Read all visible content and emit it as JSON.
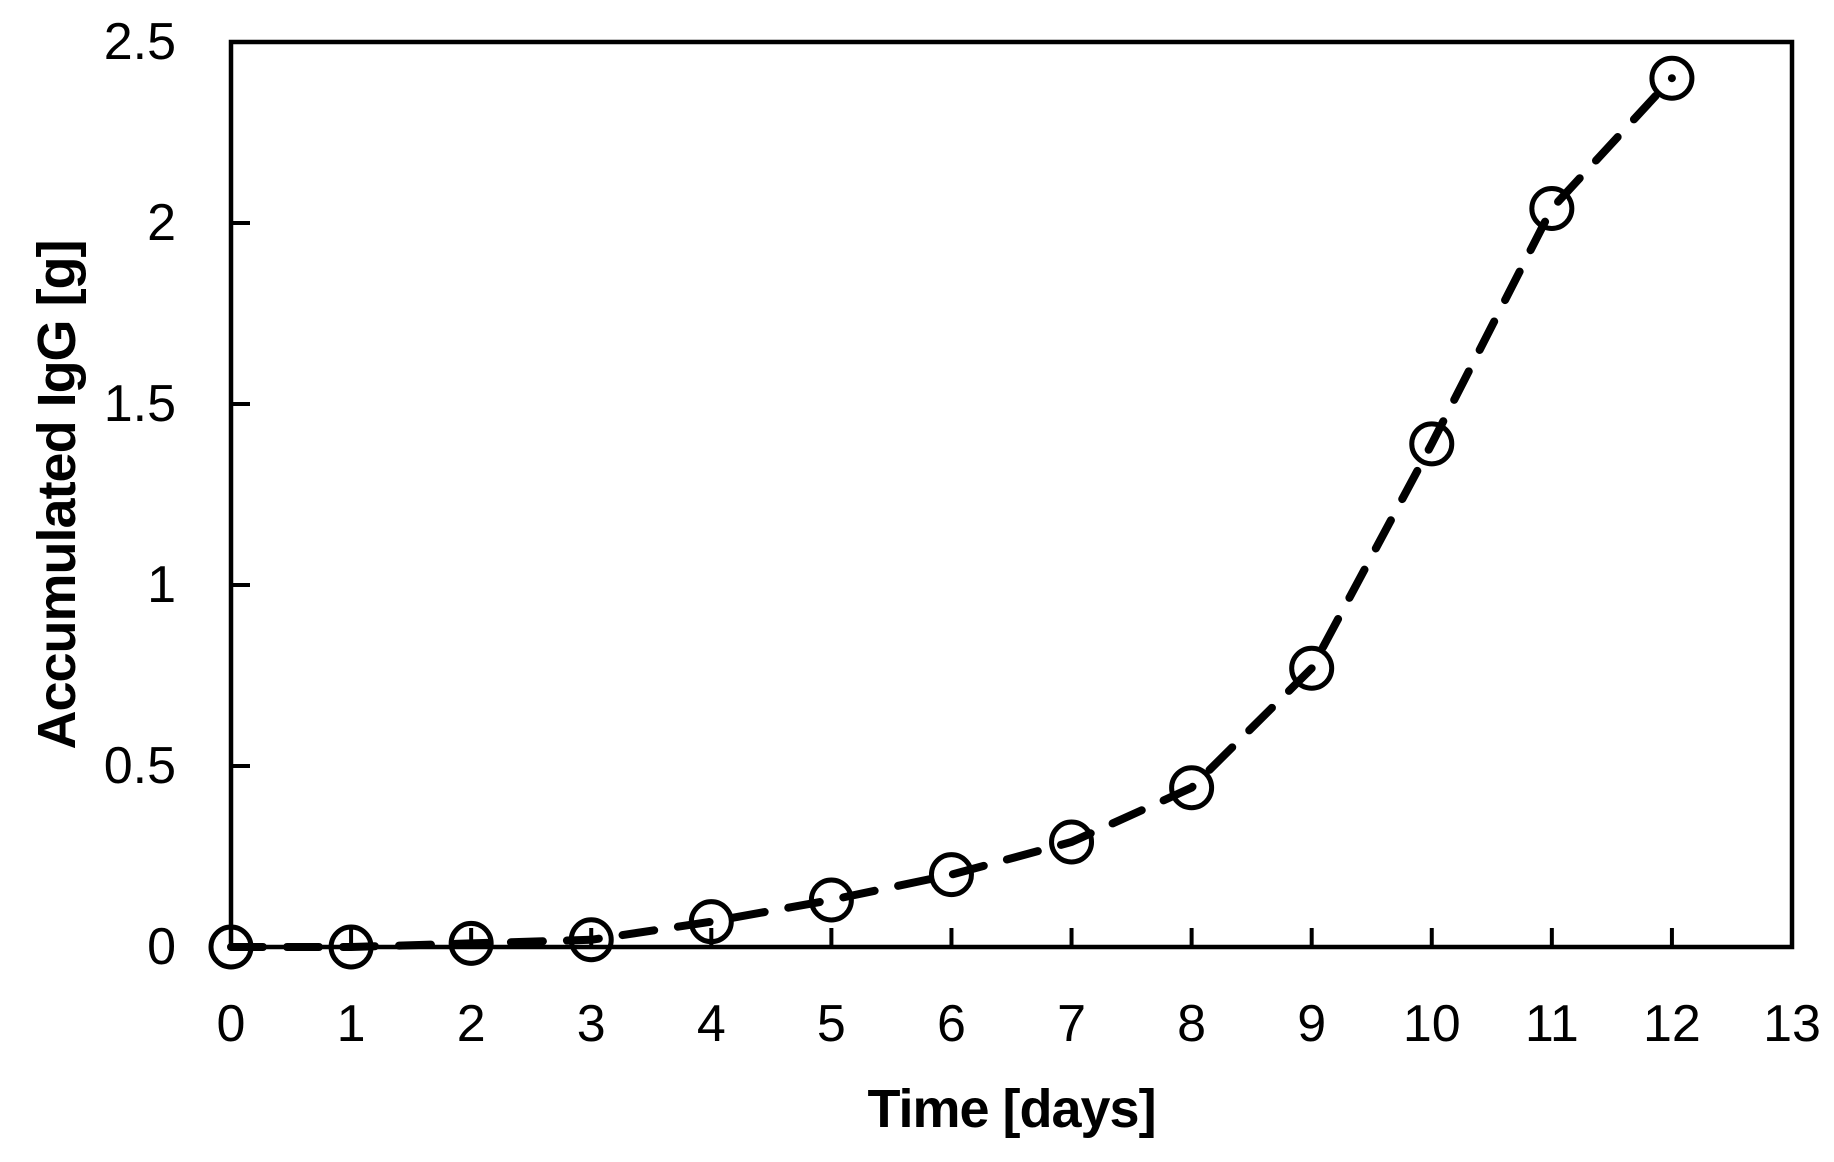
{
  "chart_data": {
    "type": "scatter",
    "title": "",
    "xlabel": "Time [days]",
    "ylabel": "Accumulated IgG [g]",
    "xlim": [
      0,
      13
    ],
    "ylim": [
      0,
      2.5
    ],
    "grid": false,
    "legend": false,
    "line_style": "dashed",
    "marker": "open-circle",
    "color": "#000000",
    "background_color": "#ffffff",
    "xticks": {
      "values": [
        0,
        1,
        2,
        3,
        4,
        5,
        6,
        7,
        8,
        9,
        10,
        11,
        12,
        13
      ],
      "labels": [
        "0",
        "1",
        "2",
        "3",
        "4",
        "5",
        "6",
        "7",
        "8",
        "9",
        "10",
        "11",
        "12",
        "13"
      ]
    },
    "yticks": {
      "values": [
        0,
        0.5,
        1,
        1.5,
        2,
        2.5
      ],
      "labels": [
        "0",
        "0.5",
        "1",
        "1.5",
        "2",
        "2.5"
      ]
    },
    "series": [
      {
        "name": "Accumulated IgG",
        "x": [
          0,
          1,
          2,
          3,
          4,
          5,
          6,
          7,
          8,
          9,
          10,
          11,
          12
        ],
        "y": [
          0,
          0,
          0.01,
          0.02,
          0.07,
          0.13,
          0.2,
          0.29,
          0.44,
          0.77,
          1.39,
          2.04,
          2.4
        ]
      }
    ]
  }
}
